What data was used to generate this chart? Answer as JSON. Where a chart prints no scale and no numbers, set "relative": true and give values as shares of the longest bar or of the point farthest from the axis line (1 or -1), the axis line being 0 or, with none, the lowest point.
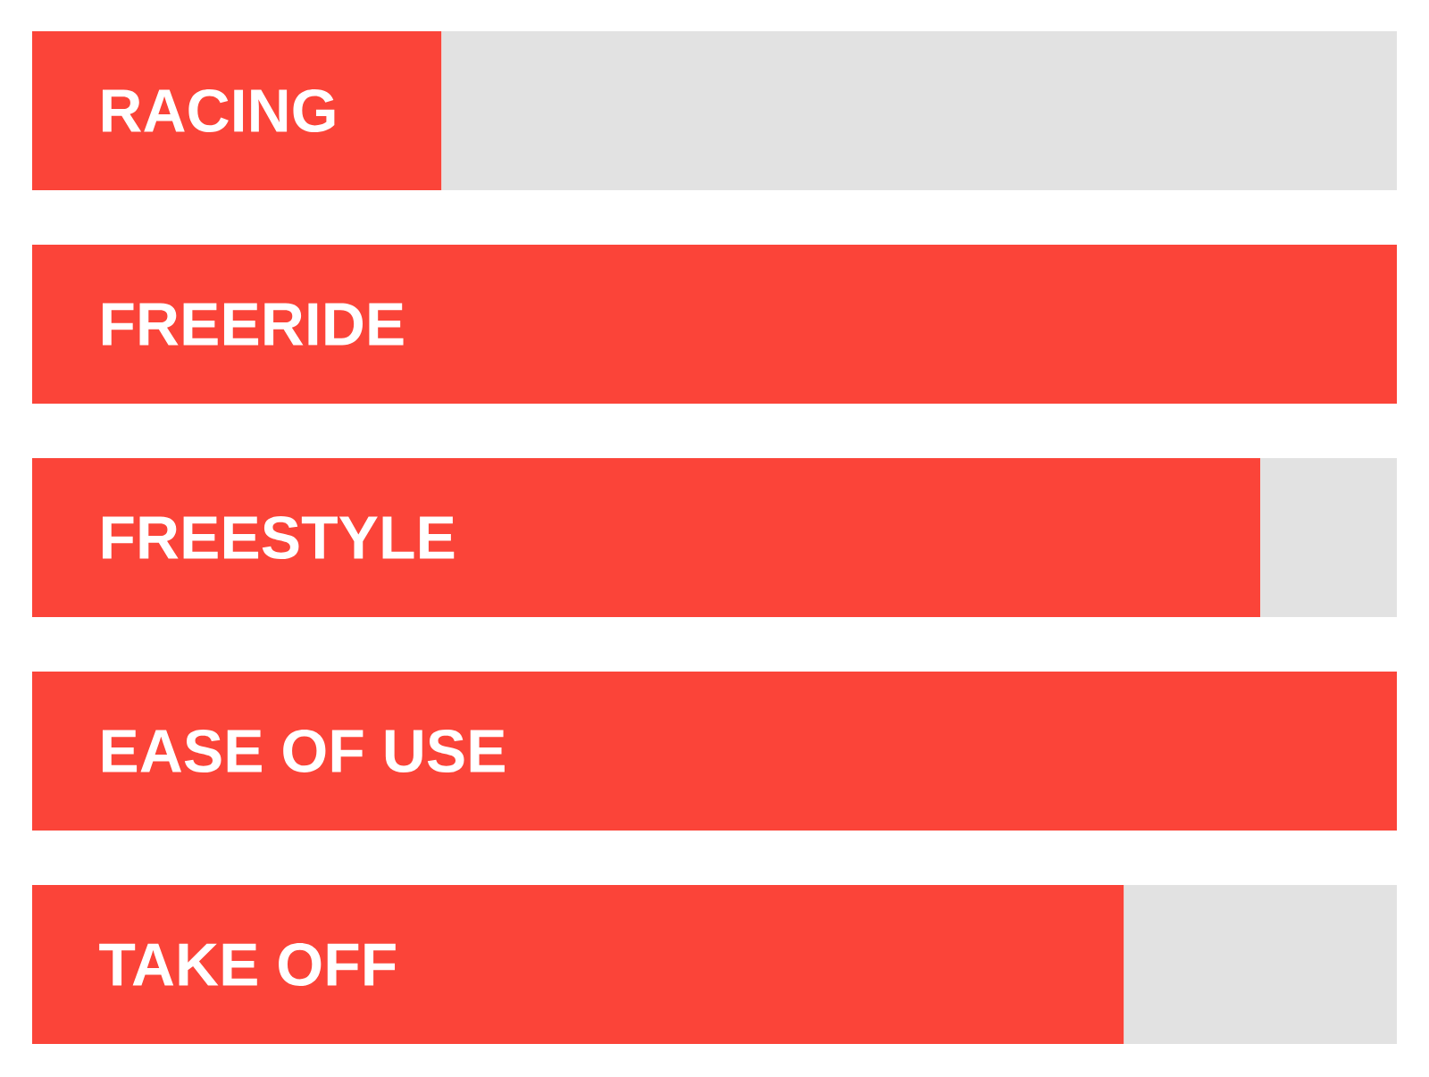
{
  "chart_data": {
    "type": "bar",
    "orientation": "horizontal",
    "stacked": true,
    "relative": true,
    "categories": [
      "RACING",
      "FREERIDE",
      "FREESTYLE",
      "EASE OF USE",
      "TAKE OFF"
    ],
    "series": [
      {
        "color": "#fb4439",
        "values": [
          0.3,
          1,
          0.9,
          1,
          0.8
        ]
      },
      {
        "color": "#e2e2e2",
        "values": [
          0.7,
          null,
          0.1,
          null,
          0.2
        ]
      }
    ]
  }
}
